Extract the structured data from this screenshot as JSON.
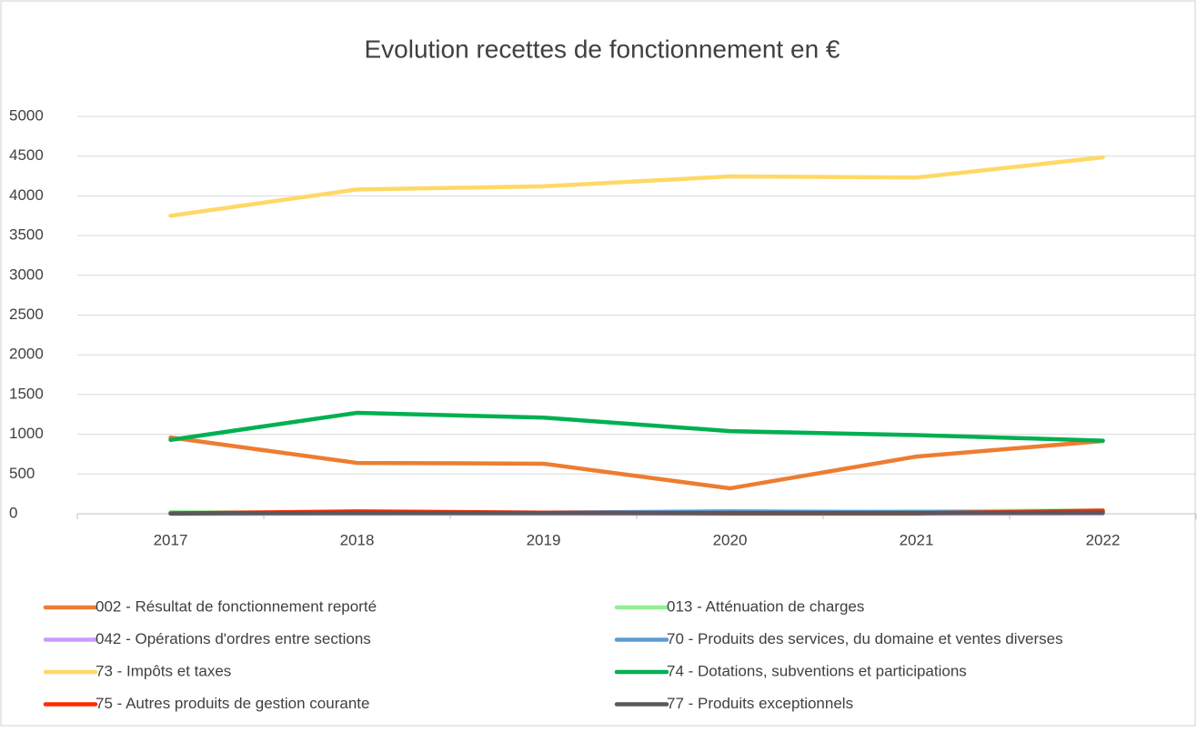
{
  "chart_data": {
    "type": "line",
    "title": "Evolution recettes de fonctionnement en €",
    "categories": [
      "2017",
      "2018",
      "2019",
      "2020",
      "2021",
      "2022"
    ],
    "series": [
      {
        "name": "002 - Résultat de fonctionnement reporté",
        "color": "#ed7d31",
        "values": [
          960,
          640,
          630,
          320,
          720,
          915
        ]
      },
      {
        "name": "013 - Atténuation de charges",
        "color": "#92f092",
        "values": [
          20,
          10,
          10,
          10,
          30,
          40
        ]
      },
      {
        "name": "042 - Opérations d'ordres entre sections",
        "color": "#cc99ff",
        "values": [
          0,
          0,
          0,
          0,
          0,
          0
        ]
      },
      {
        "name": "70 - Produits des services, du domaine et ventes diverses",
        "color": "#5b9bd5",
        "values": [
          5,
          10,
          15,
          30,
          20,
          25
        ]
      },
      {
        "name": "73 - Impôts et taxes",
        "color": "#ffd966",
        "values": [
          3750,
          4080,
          4120,
          4245,
          4230,
          4485
        ]
      },
      {
        "name": "74 - Dotations, subventions et participations",
        "color": "#00b050",
        "values": [
          930,
          1270,
          1210,
          1040,
          990,
          920
        ]
      },
      {
        "name": "75 - Autres produits de gestion courante",
        "color": "#ff2a00",
        "values": [
          5,
          30,
          15,
          5,
          5,
          40
        ]
      },
      {
        "name": "77 - Produits exceptionnels",
        "color": "#595959",
        "values": [
          5,
          10,
          10,
          10,
          10,
          15
        ]
      }
    ],
    "ylim": [
      0,
      5000
    ],
    "yticks": [
      0,
      500,
      1000,
      1500,
      2000,
      2500,
      3000,
      3500,
      4000,
      4500,
      5000
    ],
    "grid": true,
    "legend": "bottom"
  }
}
